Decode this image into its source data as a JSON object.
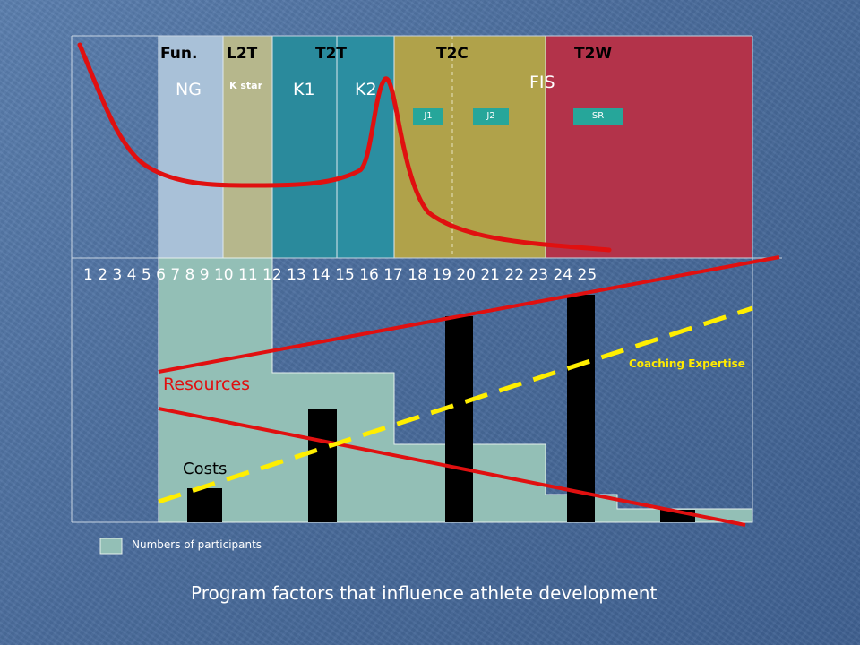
{
  "stages": [
    "Fun.",
    "L2T",
    "T2T",
    "T2C",
    "T2W"
  ],
  "substages": {
    "ng": "NG",
    "kstar": "K star",
    "k1": "K1",
    "k2": "K2",
    "fis": "FIS"
  },
  "boxes": [
    "J1",
    "J2",
    "SR"
  ],
  "ages": "1 2 3 4 5 6 7 8 9 10 11 12 13 14 15 16 17 18 19 20 21 22 23 24 25",
  "labels": {
    "resources": "Resources",
    "costs": "Costs",
    "coaching": "Coaching Expertise"
  },
  "legend": {
    "participants": "Numbers of participants"
  },
  "caption": "Program factors that influence athlete development",
  "colors": {
    "ng": "#a9c1d8",
    "lt": "#b6b78c",
    "k1": "#2a8a9c",
    "k2": "#2b8ea1",
    "t2c": "#b0a24a",
    "t2w": "#b3334a",
    "participants": "#93bfb6",
    "curve": "#e01010",
    "coaching": "#ffee00",
    "bars": "#000000"
  }
}
